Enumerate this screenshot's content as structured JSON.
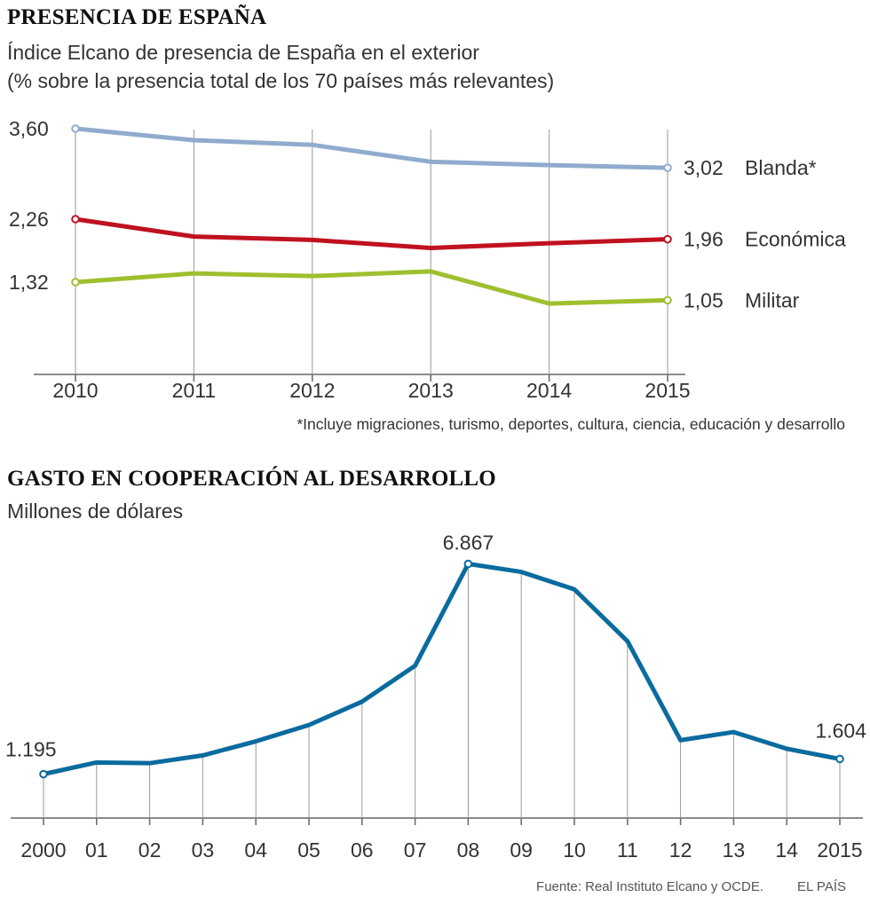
{
  "chart1": {
    "title": "PRESENCIA DE ESPAÑA",
    "subtitle1": "Índice Elcano de presencia de España en el exterior",
    "subtitle2": "(% sobre la presencia total de los 70 países más relevantes)",
    "footnote": "*Incluye migraciones, turismo, deportes, cultura, ciencia, educación y desarrollo"
  },
  "chart2": {
    "title": "GASTO EN COOPERACIÓN AL DESARROLLO",
    "subtitle": "Millones de dólares",
    "label_first": "1.195",
    "label_peak": "6.867",
    "label_last": "1.604"
  },
  "source": "Fuente: Real Instituto Elcano y OCDE.",
  "brand": "EL PAÍS",
  "colors": {
    "blanda": "#8fabcd",
    "economica": "#c0111f",
    "militar": "#9fbf2e",
    "gasto": "#0a6b9f",
    "grid": "#9a9a9a"
  },
  "chart_data": [
    {
      "type": "line",
      "title": "PRESENCIA DE ESPAÑA",
      "categories": [
        "2010",
        "2011",
        "2012",
        "2013",
        "2014",
        "2015"
      ],
      "y_ticks": [
        "3,60",
        "2,26",
        "1,32"
      ],
      "series": [
        {
          "name": "Blanda*",
          "end_label": "3,02",
          "values": [
            3.6,
            3.43,
            3.36,
            3.11,
            3.06,
            3.02
          ]
        },
        {
          "name": "Económica",
          "end_label": "1,96",
          "values": [
            2.26,
            2.0,
            1.95,
            1.83,
            1.9,
            1.96
          ]
        },
        {
          "name": "Militar",
          "end_label": "1,05",
          "values": [
            1.32,
            1.45,
            1.41,
            1.48,
            1.0,
            1.05
          ]
        }
      ]
    },
    {
      "type": "line",
      "title": "GASTO EN COOPERACIÓN AL DESARROLLO",
      "ylabel": "Millones de dólares",
      "categories": [
        "2000",
        "01",
        "02",
        "03",
        "04",
        "05",
        "06",
        "07",
        "08",
        "09",
        "10",
        "11",
        "12",
        "13",
        "14",
        "2015"
      ],
      "series": [
        {
          "name": "Gasto",
          "values": [
            1195,
            1510,
            1490,
            1700,
            2080,
            2520,
            3150,
            4120,
            6867,
            6650,
            6180,
            4780,
            2110,
            2330,
            1880,
            1604
          ]
        }
      ]
    }
  ]
}
